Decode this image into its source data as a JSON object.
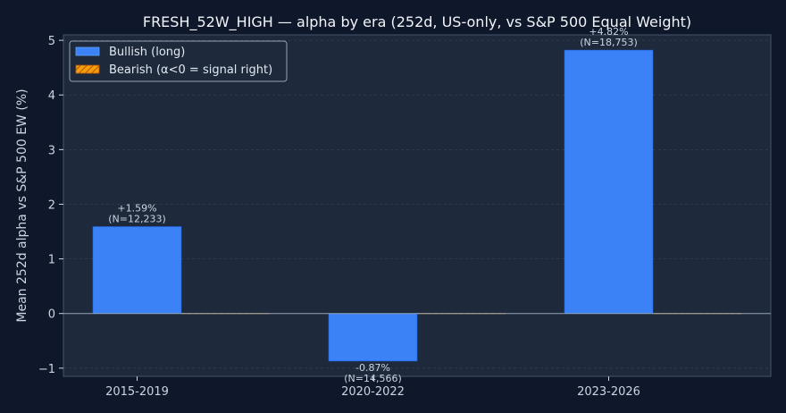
{
  "chart_data": {
    "type": "bar",
    "title": "FRESH_52W_HIGH — alpha by era (252d, US-only, vs S&P 500 Equal Weight)",
    "xlabel": "",
    "ylabel": "Mean 252d alpha vs S&P 500 EW (%)",
    "categories": [
      "2015-2019",
      "2020-2022",
      "2023-2026"
    ],
    "ylim": [
      -1.15,
      5.1
    ],
    "yticks": [
      -1,
      0,
      1,
      2,
      3,
      4,
      5
    ],
    "ytick_labels": [
      "−1",
      "0",
      "1",
      "2",
      "3",
      "4",
      "5"
    ],
    "grid": true,
    "legend_position": "top-left",
    "series": [
      {
        "name": "Bullish (long)",
        "color": "#3b82f6",
        "values": [
          1.59,
          -0.87,
          4.82
        ],
        "labels": [
          "+1.59%",
          "-0.87%",
          "+4.82%"
        ],
        "n_labels": [
          "(N=12,233)",
          "(N=14,566)",
          "(N=18,753)"
        ]
      },
      {
        "name": "Bearish (α<0 = signal right)",
        "color": "#f59e0b",
        "hatch": true,
        "values": [
          0,
          0,
          0
        ]
      }
    ],
    "colors": {
      "page_bg": "#0f172a",
      "plot_bg": "#1e293b",
      "axis": "#475569",
      "zero_line": "#94a3b8"
    }
  }
}
